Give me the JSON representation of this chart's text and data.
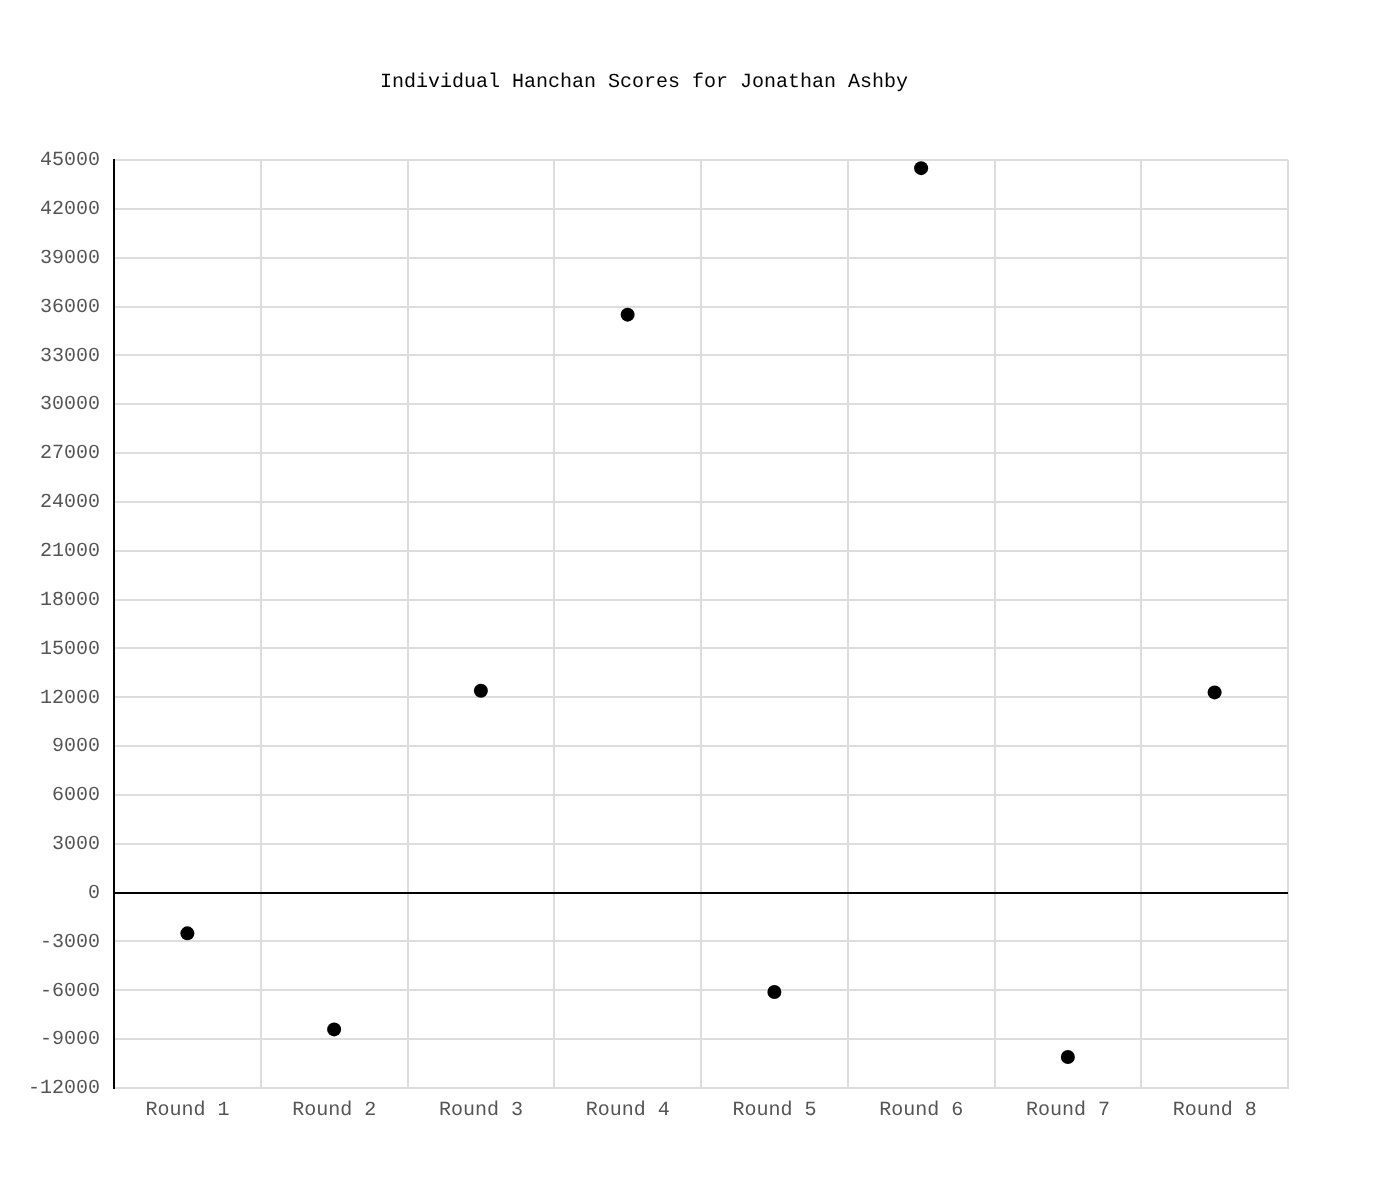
{
  "chart_data": {
    "type": "scatter",
    "title": "Individual Hanchan Scores for Jonathan Ashby",
    "categories": [
      "Round 1",
      "Round 2",
      "Round 3",
      "Round 4",
      "Round 5",
      "Round 6",
      "Round 7",
      "Round 8"
    ],
    "values": [
      -2500,
      -8400,
      12400,
      35500,
      -6100,
      44500,
      -10100,
      12300
    ],
    "color": "#000000",
    "marker": "circle",
    "ylim": [
      -12000,
      45000
    ],
    "yticks": [
      -12000,
      -9000,
      -6000,
      -3000,
      0,
      3000,
      6000,
      9000,
      12000,
      15000,
      18000,
      21000,
      24000,
      27000,
      30000,
      33000,
      36000,
      39000,
      42000,
      45000
    ],
    "grid": true,
    "ref_lines": [
      {
        "axis": "y",
        "value": 0,
        "color": "#000000"
      }
    ]
  }
}
